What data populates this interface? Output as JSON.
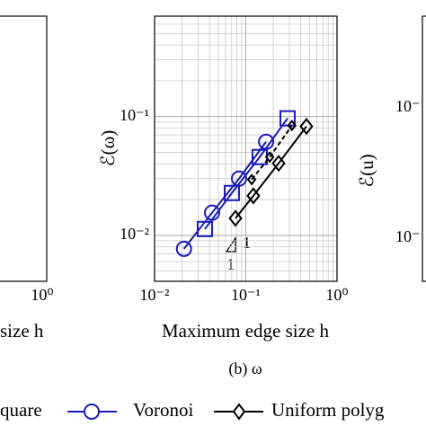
{
  "chart_data": {
    "type": "line",
    "log_x": true,
    "log_y": true,
    "grid": true,
    "xlabel": "Maximum edge size h",
    "ylabel": "ℰ(ω)",
    "caption": "(b) ω",
    "xlim": [
      0.01,
      1
    ],
    "ylim": [
      0.0041,
      0.7
    ],
    "xticks": [
      {
        "value": 0.01,
        "label": "10⁻²"
      },
      {
        "value": 0.1,
        "label": "10⁻¹"
      },
      {
        "value": 1,
        "label": "10⁰"
      }
    ],
    "yticks": [
      {
        "value": 0.01,
        "label": "10⁻²"
      },
      {
        "value": 0.1,
        "label": "10⁻¹"
      }
    ],
    "xminor": [
      0.02,
      0.03,
      0.04,
      0.05,
      0.06,
      0.07,
      0.08,
      0.09,
      0.2,
      0.3,
      0.4,
      0.5,
      0.6,
      0.7,
      0.8,
      0.9
    ],
    "yminor": [
      0.005,
      0.006,
      0.007,
      0.008,
      0.009,
      0.02,
      0.03,
      0.04,
      0.05,
      0.06,
      0.07,
      0.08,
      0.09,
      0.2,
      0.3,
      0.4,
      0.5,
      0.6,
      0.7
    ],
    "series": [
      {
        "name": "quare",
        "color": "#1a1ab8",
        "marker": "square",
        "x": [
          0.0356,
          0.0703,
          0.142,
          0.287
        ],
        "values": [
          0.0113,
          0.0227,
          0.0456,
          0.0966
        ]
      },
      {
        "name": "Voronoi",
        "color": "#1a1ab8",
        "marker": "circle",
        "x": [
          0.021,
          0.0427,
          0.0843,
          0.167
        ],
        "values": [
          0.0077,
          0.0155,
          0.03,
          0.0613
        ]
      },
      {
        "name": "Uniform polyg",
        "color": "#000000",
        "marker": "diamond",
        "x": [
          0.077,
          0.121,
          0.229,
          0.462
        ],
        "values": [
          0.0139,
          0.0215,
          0.0404,
          0.0826
        ]
      },
      {
        "color": "#000000",
        "marker": "diamond",
        "dashed": true,
        "x": [
          0.116,
          0.183,
          0.32
        ],
        "values": [
          0.0295,
          0.0456,
          0.084
        ]
      }
    ],
    "annotations": [
      "1",
      "1"
    ],
    "left_panel": {
      "xtick_label": "10⁰",
      "xlabel": "size h"
    },
    "right_panel": {
      "ytick_labels": [
        "10⁻",
        "10⁻"
      ],
      "ylabel": "ℰ(u)"
    }
  }
}
